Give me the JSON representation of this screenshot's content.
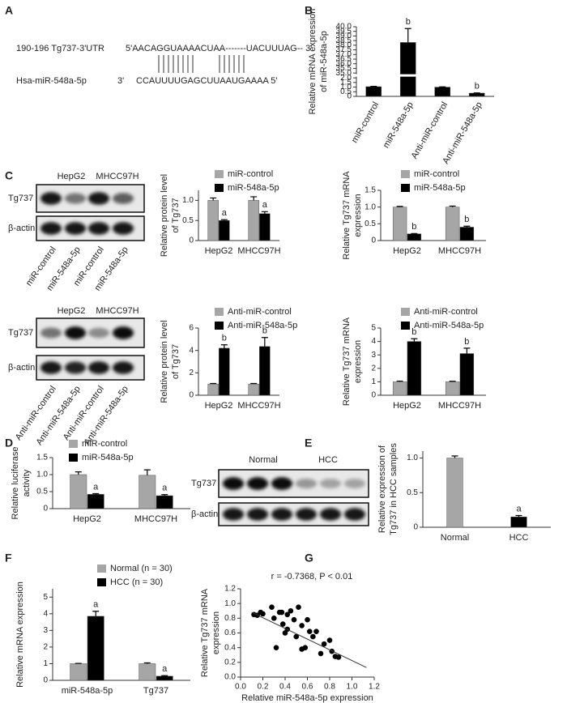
{
  "panel_labels": [
    "A",
    "B",
    "C",
    "D",
    "E",
    "F",
    "G"
  ],
  "panel_a": {
    "target_label": "190-196 Tg737-3'UTR",
    "target_seq": "5'AACAGGUAAAACUAA-------UACUUUAG-- 3'",
    "mirna_label": "Hsa-miR-548a-5p",
    "mirna_prime": "3'",
    "mirna_seq": "CCAUUUUGAGCUUAAUGAAAA 5'"
  },
  "blots": [
    {
      "groups": [
        "HepG2",
        "MHCC97H"
      ],
      "rows": [
        "Tg737",
        "β-actin"
      ],
      "lanes": [
        "miR-control",
        "miR-548a-5p",
        "miR-control",
        "miR-548a-5p"
      ]
    },
    {
      "groups": [
        "HepG2",
        "MHCC97H"
      ],
      "rows": [
        "Tg737",
        "β-actin"
      ],
      "lanes": [
        "Anti-miR-control",
        "Anti-miR-548a-5p",
        "Anti-miR-control",
        "Anti-miR-548a-5p"
      ]
    },
    {
      "groups": [
        "Normal",
        "HCC"
      ],
      "rows": [
        "Tg737",
        "β-actin"
      ]
    }
  ],
  "chart_data": [
    {
      "type": "bar",
      "ylabel": [
        "Relative mRNA expression",
        "of miR-548a-5p"
      ],
      "categories": [
        "miR-control",
        "miR-548a-5p",
        "Anti-miR-control",
        "Anti-miR-548a-5p"
      ],
      "values": [
        1.05,
        38.3,
        1.0,
        0.35
      ],
      "errors": [
        0.03,
        1.5,
        0.03,
        0.02
      ],
      "annotations": [
        null,
        "b",
        null,
        "b"
      ],
      "color": "#000000",
      "ylim": [
        0,
        40
      ],
      "ybreak": [
        2,
        35
      ],
      "yticks": [
        0,
        0.5,
        {
          "value": 1,
          "label": "1.0"
        },
        1.5,
        {
          "value": 2,
          "label": "2.0"
        },
        {
          "value": 35,
          "label": "35.0"
        },
        35.5,
        {
          "value": 36,
          "label": "36.0"
        },
        36.5,
        {
          "value": 37,
          "label": "37.0"
        },
        37.5,
        {
          "value": 38,
          "label": "38.0"
        },
        38.5,
        {
          "value": 39,
          "label": "39.0"
        },
        39.5,
        {
          "value": 40,
          "label": "40.0"
        }
      ]
    },
    {
      "type": "bar",
      "ylabel": [
        "Relative protein level",
        "of Tg737"
      ],
      "categories": [
        "HepG2",
        "MHCC97H"
      ],
      "series": [
        {
          "name": "miR-control",
          "color": "#a6a6a6",
          "values": [
            1.0,
            1.0
          ],
          "errors": [
            0.06,
            0.09
          ]
        },
        {
          "name": "miR-548a-5p",
          "color": "#000000",
          "values": [
            0.5,
            0.67
          ],
          "errors": [
            0.02,
            0.05
          ],
          "annotations": [
            "a",
            "a"
          ]
        }
      ],
      "ylim": [
        0,
        1.25
      ],
      "yticks": [
        0,
        0.5,
        {
          "value": 1,
          "label": "1.0"
        }
      ]
    },
    {
      "type": "bar",
      "ylabel": [
        "Relative Tg737 mRNA",
        "expression"
      ],
      "categories": [
        "HepG2",
        "MHCC97H"
      ],
      "series": [
        {
          "name": "miR-control",
          "color": "#a6a6a6",
          "values": [
            1.0,
            1.0
          ],
          "errors": [
            0.02,
            0.03
          ]
        },
        {
          "name": "miR-548a-5p",
          "color": "#000000",
          "values": [
            0.2,
            0.4
          ],
          "errors": [
            0.01,
            0.03
          ],
          "annotations": [
            "b",
            "b"
          ]
        }
      ],
      "ylim": [
        0,
        1.5
      ],
      "yticks": [
        0,
        0.5,
        {
          "value": 1,
          "label": "1.0"
        },
        1.5
      ]
    },
    {
      "type": "bar",
      "ylabel": [
        "Relative protein level",
        "of Tg737"
      ],
      "categories": [
        "HepG2",
        "MHCC97H"
      ],
      "series": [
        {
          "name": "Anti-miR-control",
          "color": "#a6a6a6",
          "values": [
            1.0,
            1.0
          ],
          "errors": [
            0.05,
            0.05
          ]
        },
        {
          "name": "Anti-miR-548a-5p",
          "color": "#000000",
          "values": [
            4.2,
            4.35
          ],
          "errors": [
            0.3,
            0.8
          ],
          "annotations": [
            "b",
            "b"
          ]
        }
      ],
      "ylim": [
        0,
        6
      ],
      "yticks": [
        0,
        2,
        4,
        6
      ]
    },
    {
      "type": "bar",
      "ylabel": [
        "Relative Tg737 mRNA",
        "expression"
      ],
      "categories": [
        "HepG2",
        "MHCC97H"
      ],
      "series": [
        {
          "name": "Anti-miR-control",
          "color": "#a6a6a6",
          "values": [
            1.0,
            1.0
          ],
          "errors": [
            0.05,
            0.04
          ]
        },
        {
          "name": "Anti-miR-548a-5p",
          "color": "#000000",
          "values": [
            4.0,
            3.1
          ],
          "errors": [
            0.2,
            0.4
          ],
          "annotations": [
            "b",
            "b"
          ]
        }
      ],
      "ylim": [
        0,
        5
      ],
      "yticks": [
        0,
        1,
        2,
        3,
        4,
        5
      ]
    },
    {
      "type": "bar",
      "ylabel": [
        "Relative luciferase",
        "activity"
      ],
      "categories": [
        "HepG2",
        "MHCC97H"
      ],
      "series": [
        {
          "name": "miR-control",
          "color": "#a6a6a6",
          "values": [
            1.0,
            0.98
          ],
          "errors": [
            0.08,
            0.16
          ]
        },
        {
          "name": "miR-548a-5p",
          "color": "#000000",
          "values": [
            0.42,
            0.38
          ],
          "errors": [
            0.02,
            0.03
          ],
          "annotations": [
            "a",
            "a"
          ]
        }
      ],
      "ylim": [
        0,
        1.5
      ],
      "yticks": [
        0,
        0.5,
        {
          "value": 1,
          "label": "1.0"
        },
        1.5
      ]
    },
    {
      "type": "bar",
      "ylabel": [
        "Relative expression of",
        "Tg737 in HCC samples"
      ],
      "categories": [
        "Normal",
        "HCC"
      ],
      "values": [
        1.0,
        0.15
      ],
      "errors": [
        0.03,
        0.02
      ],
      "annotations": [
        null,
        "a"
      ],
      "colors": [
        "#a6a6a6",
        "#000000"
      ],
      "ylim": [
        0,
        1.1
      ],
      "yticks": [
        0,
        0.5,
        {
          "value": 1,
          "label": "1.0"
        }
      ]
    },
    {
      "type": "bar",
      "ylabel": [
        "Relative mRNA expression"
      ],
      "categories": [
        "miR-548a-5p",
        "Tg737"
      ],
      "series": [
        {
          "name": "Normal (n = 30)",
          "color": "#a6a6a6",
          "values": [
            1.0,
            1.0
          ],
          "errors": [
            0.02,
            0.05
          ]
        },
        {
          "name": "HCC (n = 30)",
          "color": "#000000",
          "values": [
            3.85,
            0.25
          ],
          "errors": [
            0.3,
            0.03
          ],
          "annotations": [
            "a",
            "a"
          ]
        }
      ],
      "ylim": [
        0,
        5.5
      ],
      "yticks": [
        0,
        1,
        2,
        3,
        4,
        5
      ]
    },
    {
      "type": "scatter",
      "annotation": "r = -0.7368, P < 0.01",
      "xlabel": "Relative miR-548a-5p expression",
      "ylabel": [
        "Relative Tg737 mRNA",
        "expression"
      ],
      "x": [
        0.12,
        0.15,
        0.18,
        0.2,
        0.28,
        0.3,
        0.32,
        0.35,
        0.37,
        0.38,
        0.4,
        0.42,
        0.42,
        0.45,
        0.48,
        0.5,
        0.52,
        0.55,
        0.55,
        0.58,
        0.6,
        0.62,
        0.65,
        0.68,
        0.72,
        0.75,
        0.8,
        0.82,
        0.85,
        0.88
      ],
      "y": [
        0.85,
        0.84,
        0.88,
        0.86,
        0.95,
        0.8,
        0.4,
        0.88,
        0.88,
        0.72,
        0.6,
        0.65,
        0.85,
        0.9,
        0.78,
        0.55,
        0.95,
        0.7,
        0.38,
        0.4,
        0.78,
        0.62,
        0.55,
        0.62,
        0.32,
        0.45,
        0.5,
        0.35,
        0.28,
        0.27
      ],
      "trend_line": {
        "x": [
          0.1,
          1.13
        ],
        "y": [
          0.88,
          0.13
        ]
      },
      "color": "#000000",
      "xlim": [
        0,
        1.2
      ],
      "ylim": [
        0,
        1.2
      ],
      "xticks": [
        {
          "value": 0,
          "label": "0.0"
        },
        0.2,
        0.4,
        0.6,
        0.8,
        {
          "value": 1,
          "label": "1.0"
        },
        1.2
      ],
      "yticks": [
        {
          "value": 0,
          "label": "0.0"
        },
        0.2,
        0.4,
        0.6,
        0.8,
        {
          "value": 1,
          "label": "1.0"
        },
        1.2
      ]
    }
  ]
}
